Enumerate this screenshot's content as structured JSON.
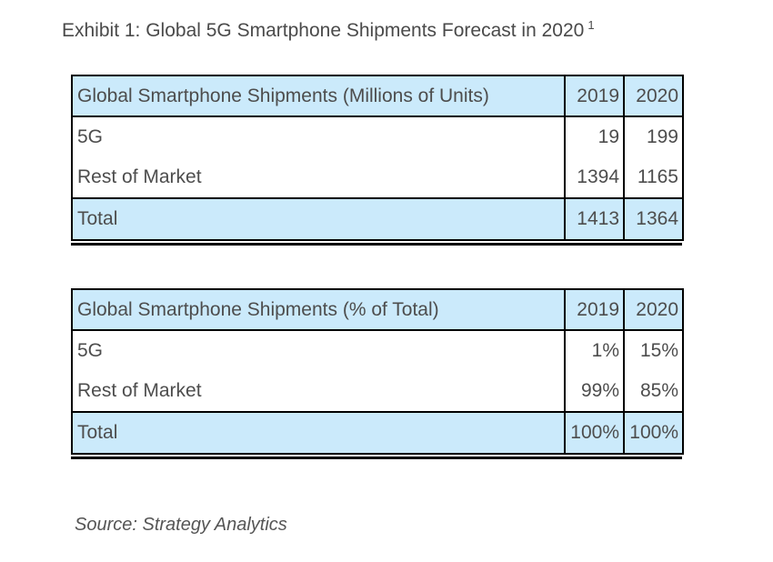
{
  "title": {
    "text": "Exhibit 1: Global 5G Smartphone Shipments Forecast in 2020",
    "superscript": "1"
  },
  "tables": [
    {
      "header": {
        "label": "Global Smartphone Shipments (Millions of Units)",
        "col1": "2019",
        "col2": "2020"
      },
      "rows": [
        {
          "label": "5G",
          "col1": "19",
          "col2": "199"
        },
        {
          "label": "Rest of Market",
          "col1": "1394",
          "col2": "1165"
        }
      ],
      "total": {
        "label": "Total",
        "col1": "1413",
        "col2": "1364"
      }
    },
    {
      "header": {
        "label": "Global Smartphone Shipments (% of Total)",
        "col1": "2019",
        "col2": "2020"
      },
      "rows": [
        {
          "label": "5G",
          "col1": "1%",
          "col2": "15%"
        },
        {
          "label": "Rest of Market",
          "col1": "99%",
          "col2": "85%"
        }
      ],
      "total": {
        "label": "Total",
        "col1": "100%",
        "col2": "100%"
      }
    }
  ],
  "source": {
    "text": "Source: Strategy Analytics"
  },
  "colors": {
    "highlight_fill": "#cbeafb",
    "border": "#000000",
    "text": "#4d4d4d",
    "background": "#ffffff"
  }
}
